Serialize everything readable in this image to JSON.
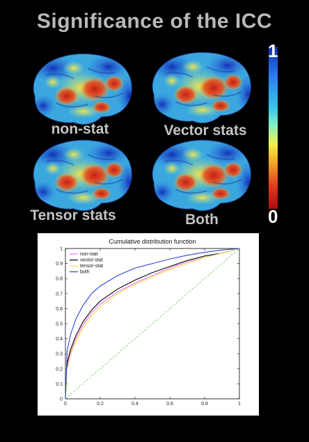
{
  "title": "Significance of the ICC",
  "panels": [
    {
      "label": "non-stat"
    },
    {
      "label": "Vector stats"
    },
    {
      "label": "Tensor stats"
    },
    {
      "label": "Both"
    }
  ],
  "colorbar": {
    "max_label": "1",
    "min_label": "0",
    "colors": [
      "#0d2fae",
      "#39c6e8",
      "#f2f24a",
      "#e13a1e",
      "#a90d0d"
    ]
  },
  "chart_data": {
    "type": "line",
    "title": "Cumulative distribution function",
    "xlabel": "",
    "ylabel": "",
    "xlim": [
      0,
      1
    ],
    "ylim": [
      0,
      1
    ],
    "xticks": [
      "0",
      "0.2",
      "0.4",
      "0.6",
      "0.8",
      "1"
    ],
    "yticks": [
      "0",
      "0.1",
      "0.2",
      "0.3",
      "0.4",
      "0.5",
      "0.6",
      "0.7",
      "0.8",
      "0.9",
      "1"
    ],
    "grid": false,
    "legend": "top-left",
    "series": [
      {
        "name": "non-stat",
        "color": "#f06ef0",
        "x": [
          0,
          0.01,
          0.03,
          0.06,
          0.1,
          0.15,
          0.2,
          0.3,
          0.4,
          0.5,
          0.6,
          0.7,
          0.8,
          0.9,
          1.0
        ],
        "y": [
          0,
          0.22,
          0.31,
          0.4,
          0.49,
          0.57,
          0.63,
          0.71,
          0.77,
          0.82,
          0.87,
          0.91,
          0.94,
          0.97,
          1.0
        ]
      },
      {
        "name": "vector-stat",
        "color": "#000000",
        "x": [
          0,
          0.01,
          0.03,
          0.06,
          0.1,
          0.15,
          0.2,
          0.3,
          0.4,
          0.5,
          0.6,
          0.7,
          0.8,
          0.9,
          1.0
        ],
        "y": [
          0,
          0.24,
          0.33,
          0.42,
          0.51,
          0.59,
          0.65,
          0.73,
          0.79,
          0.84,
          0.88,
          0.92,
          0.95,
          0.97,
          1.0
        ]
      },
      {
        "name": "tensor-stat",
        "color": "#f2e34a",
        "x": [
          0,
          0.01,
          0.03,
          0.06,
          0.1,
          0.15,
          0.2,
          0.3,
          0.4,
          0.5,
          0.6,
          0.7,
          0.8,
          0.9,
          1.0
        ],
        "y": [
          0,
          0.2,
          0.29,
          0.38,
          0.47,
          0.55,
          0.61,
          0.7,
          0.76,
          0.81,
          0.86,
          0.9,
          0.94,
          0.97,
          1.0
        ]
      },
      {
        "name": "both",
        "color": "#2546d8",
        "x": [
          0,
          0.01,
          0.03,
          0.06,
          0.1,
          0.15,
          0.2,
          0.3,
          0.4,
          0.5,
          0.6,
          0.7,
          0.8,
          0.9,
          1.0
        ],
        "y": [
          0,
          0.32,
          0.43,
          0.53,
          0.62,
          0.7,
          0.75,
          0.82,
          0.87,
          0.9,
          0.93,
          0.955,
          0.975,
          0.99,
          1.0
        ]
      },
      {
        "name": "",
        "color": "#7dcf6e",
        "dashed": true,
        "x": [
          0,
          1
        ],
        "y": [
          0,
          1
        ]
      }
    ]
  }
}
